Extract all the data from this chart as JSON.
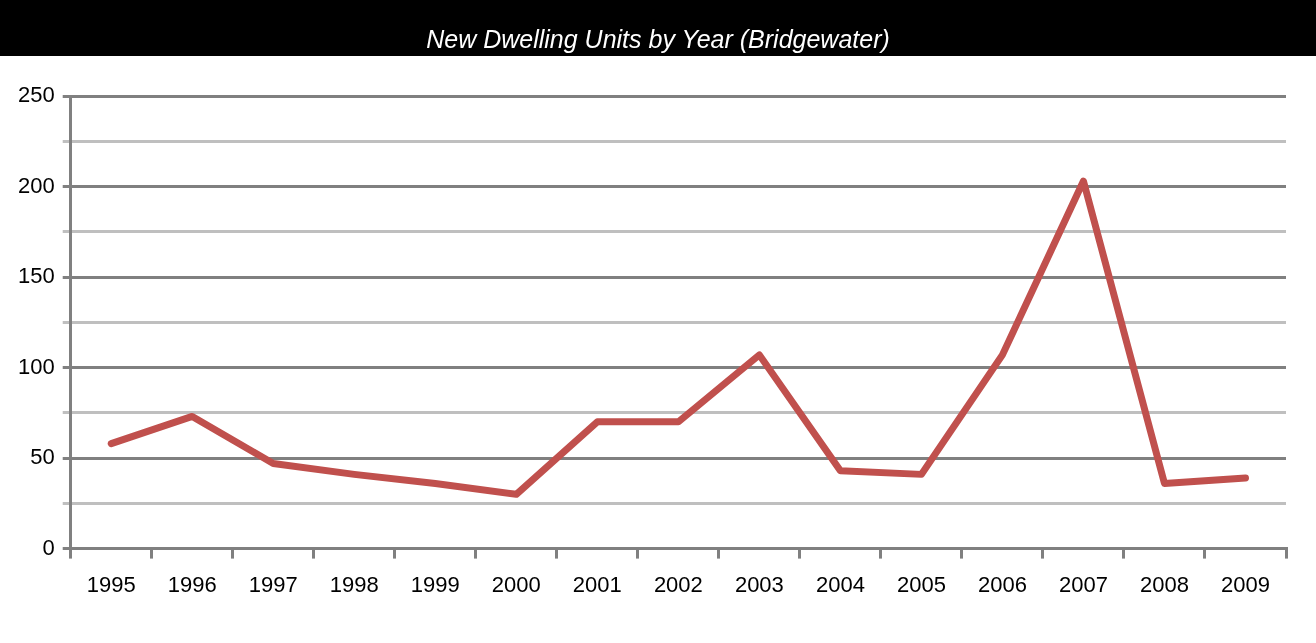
{
  "chart_data": {
    "type": "line",
    "title": "New Dwelling Units by Year (Bridgewater)",
    "categories": [
      "1995",
      "1996",
      "1997",
      "1998",
      "1999",
      "2000",
      "2001",
      "2002",
      "2003",
      "2004",
      "2005",
      "2006",
      "2007",
      "2008",
      "2009"
    ],
    "series": [
      {
        "color": "#c0504d",
        "values": [
          58,
          73,
          47,
          41,
          36,
          30,
          70,
          70,
          107,
          43,
          41,
          107,
          203,
          36,
          39
        ]
      }
    ],
    "ylim": [
      0,
      250
    ],
    "yticks": [
      0,
      {
        "value": 25,
        "label": null
      },
      50,
      {
        "value": 75,
        "label": null
      },
      100,
      {
        "value": 125,
        "label": null
      },
      150,
      {
        "value": 175,
        "label": null
      },
      200,
      {
        "value": 225,
        "label": null
      },
      250
    ],
    "grid": "y",
    "legend": false,
    "marker": "none",
    "line_style": "solid"
  }
}
